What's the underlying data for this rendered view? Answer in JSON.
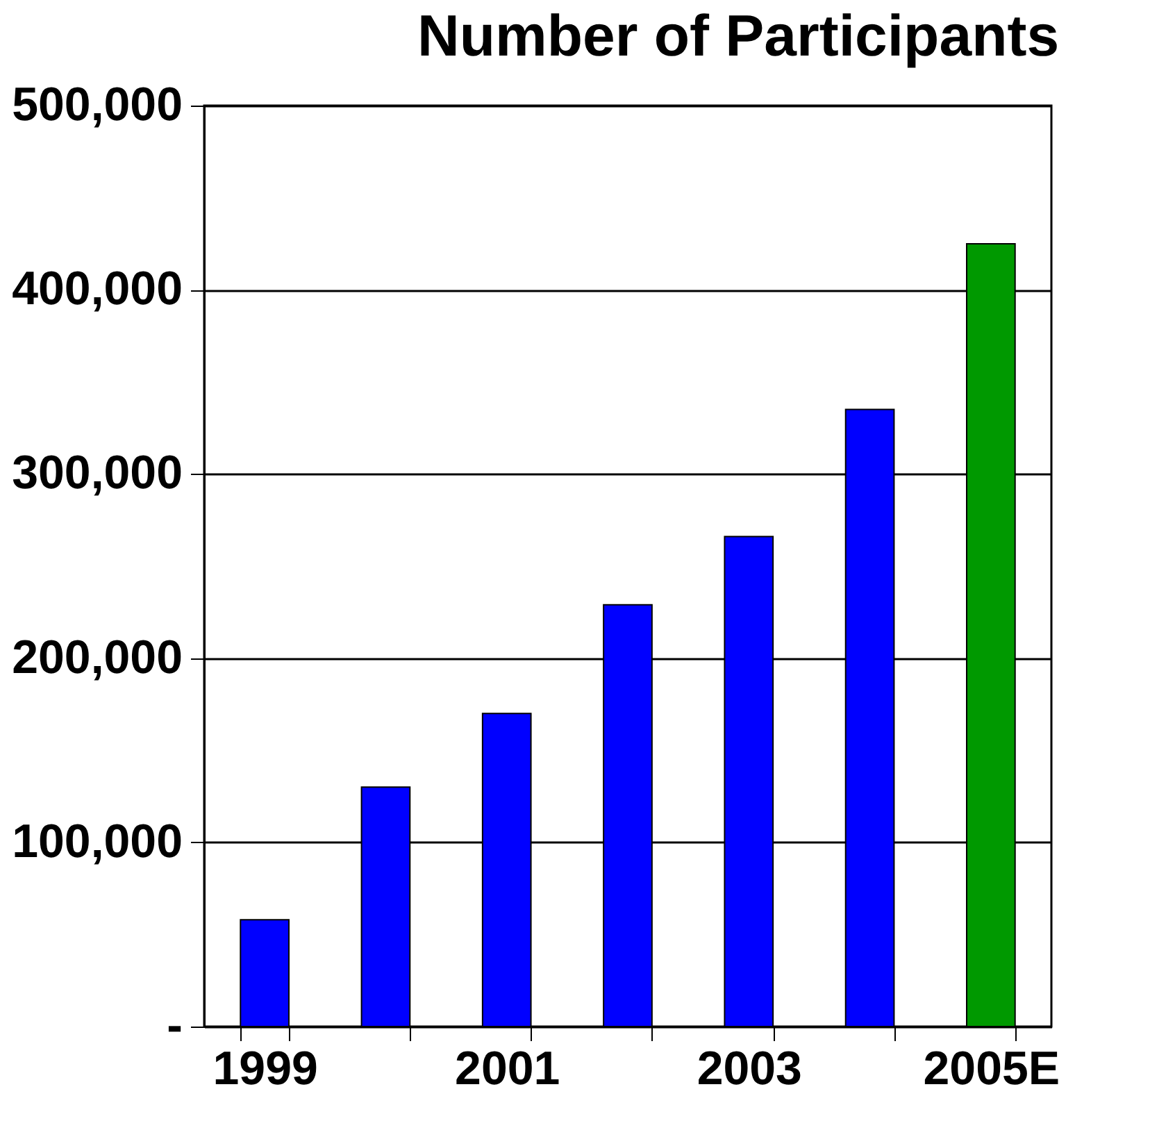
{
  "chart_data": {
    "type": "bar",
    "title": "Number of Participants",
    "categories": [
      "1999",
      null,
      "2001",
      null,
      "2003",
      null,
      "2005E"
    ],
    "values": [
      58000,
      130000,
      170000,
      229000,
      266000,
      335000,
      425000
    ],
    "colors": [
      "#0000ff",
      "#0000ff",
      "#0000ff",
      "#0000ff",
      "#0000ff",
      "#0000ff",
      "#009900"
    ],
    "ylim": [
      0,
      500000
    ],
    "yticks": [
      {
        "value": 0,
        "label": "-"
      },
      {
        "value": 100000,
        "label": "100,000"
      },
      {
        "value": 200000,
        "label": "200,000"
      },
      {
        "value": 300000,
        "label": "300,000"
      },
      {
        "value": 400000,
        "label": "400,000"
      },
      {
        "value": 500000,
        "label": "500,000"
      }
    ],
    "grid": "y"
  }
}
